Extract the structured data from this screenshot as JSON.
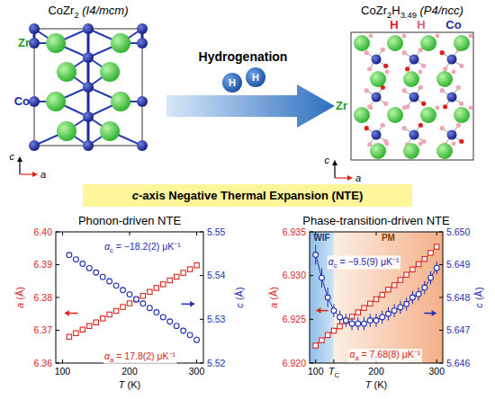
{
  "diagram": {
    "left": {
      "formula": [
        {
          "text": "Co"
        },
        {
          "text": "Zr",
          "sub": "2"
        }
      ],
      "space_group": "(I4/mcm)",
      "labels": [
        "Zr",
        "Co"
      ]
    },
    "right": {
      "formula": [
        {
          "text": "Co"
        },
        {
          "text": "Zr",
          "sub": "2"
        },
        {
          "text": "H",
          "sub": "3.49"
        }
      ],
      "space_group": "(P4/ncc)",
      "labels": [
        "H",
        "H",
        "Co",
        "Zr"
      ]
    },
    "arrow_label": "Hydrogenation",
    "molecule": [
      "H",
      "H"
    ],
    "axes": [
      "c",
      "a"
    ],
    "banner": {
      "italic": "c",
      "text": "-axis Negative Thermal Expansion (NTE)"
    }
  },
  "chart_data": [
    {
      "type": "scatter",
      "title": "Phonon-driven NTE",
      "x_label": "T (K)",
      "y_label": "a (Å)",
      "y2_label": "c (Å)",
      "x": [
        110,
        120,
        130,
        140,
        150,
        160,
        170,
        180,
        190,
        200,
        210,
        220,
        230,
        240,
        250,
        260,
        270,
        280,
        290,
        300
      ],
      "xlim": [
        90,
        310
      ],
      "xticks": [
        100,
        200,
        300
      ],
      "ylim": [
        6.36,
        6.4
      ],
      "yticks": [
        6.36,
        6.37,
        6.38,
        6.39,
        {
          "value": 6.4,
          "label": "6.40"
        }
      ],
      "y2lim": [
        5.52,
        5.55
      ],
      "y2ticks": [
        5.52,
        5.53,
        5.54,
        5.55
      ],
      "series": [
        {
          "color": "#d9261c",
          "marker": "square",
          "line_style": "none",
          "values": [
            6.368,
            6.3691,
            6.3702,
            6.3713,
            6.3724,
            6.3736,
            6.3748,
            6.3759,
            6.3771,
            6.3782,
            6.3794,
            6.3805,
            6.3817,
            6.3829,
            6.384,
            6.3852,
            6.3863,
            6.3875,
            6.3886,
            6.3898
          ],
          "annotation": {
            "symbol": "α",
            "subscript": "a",
            "text": " = 17.8(2) μK⁻¹"
          }
        },
        {
          "color": "#1f2fb0",
          "axis": "y2",
          "marker": "circle",
          "line_style": "none",
          "values": [
            5.5447,
            5.5437,
            5.5427,
            5.5417,
            5.5407,
            5.5397,
            5.5387,
            5.5377,
            5.5367,
            5.5357,
            5.5346,
            5.5336,
            5.5326,
            5.5316,
            5.5305,
            5.5295,
            5.5285,
            5.5274,
            5.5264,
            5.5253
          ],
          "annotation": {
            "symbol": "α",
            "subscript": "c",
            "text": " = −18.2(2) μK⁻¹"
          }
        }
      ]
    },
    {
      "type": "line",
      "title": "Phase-transition-driven NTE",
      "x_label": "T (K)",
      "y_label": "a (Å)",
      "y2_label": "c (Å)",
      "x": [
        100,
        110,
        120,
        130,
        140,
        150,
        160,
        170,
        180,
        190,
        200,
        210,
        220,
        230,
        240,
        250,
        260,
        270,
        280,
        290,
        300
      ],
      "xlim": [
        90,
        310
      ],
      "xticks": [
        100,
        200,
        300
      ],
      "ylim": [
        6.92,
        6.935
      ],
      "yticks": [
        {
          "value": 6.92,
          "label": "6.920"
        },
        6.925,
        {
          "value": 6.93,
          "label": "6.930"
        },
        6.935
      ],
      "y2lim": [
        5.646,
        5.65
      ],
      "y2ticks": [
        5.646,
        5.647,
        5.648,
        5.649,
        {
          "value": 5.65,
          "label": "5.650"
        }
      ],
      "regions": [
        {
          "label": "WIF",
          "from": 90,
          "to": 130
        },
        {
          "label": "PM",
          "from": 130,
          "to": 310
        }
      ],
      "transition": {
        "x": 130,
        "symbol": "T",
        "subscript": "C"
      },
      "series": [
        {
          "color": "#d9261c",
          "marker": "square",
          "line_style": "solid",
          "values": [
            6.922,
            6.9226,
            6.9232,
            6.9237,
            6.9242,
            6.9248,
            6.9253,
            6.9258,
            6.9263,
            6.9268,
            6.9273,
            6.9278,
            6.9284,
            6.9289,
            6.9295,
            6.9301,
            6.9307,
            6.9313,
            6.9319,
            6.9326,
            6.9333
          ],
          "annotation": {
            "symbol": "α",
            "subscript": "a",
            "text": " = 7.68(8) μK⁻¹"
          }
        },
        {
          "color": "#1f2fb0",
          "axis": "y2",
          "marker": "circle",
          "line_style": "solid",
          "values": [
            5.6493,
            5.6486,
            5.648,
            5.6476,
            5.6474,
            5.6473,
            5.6472,
            5.6472,
            5.6472,
            5.6473,
            5.6473,
            5.6474,
            5.6475,
            5.6476,
            5.6477,
            5.6478,
            5.648,
            5.6481,
            5.6483,
            5.6486,
            5.6489
          ],
          "errors": [
            0.0003,
            0.0003,
            0.0003,
            0.0002,
            0.0002,
            0.0002,
            0.0002,
            0.0002,
            0.0002,
            0.0002,
            0.0002,
            0.0002,
            0.0002,
            0.0002,
            0.0002,
            0.0002,
            0.0002,
            0.0002,
            0.0002,
            0.0002,
            0.0002
          ],
          "annotation": {
            "symbol": "α",
            "subscript": "c",
            "text": " = −9.5(9) μK⁻¹"
          }
        }
      ]
    }
  ]
}
